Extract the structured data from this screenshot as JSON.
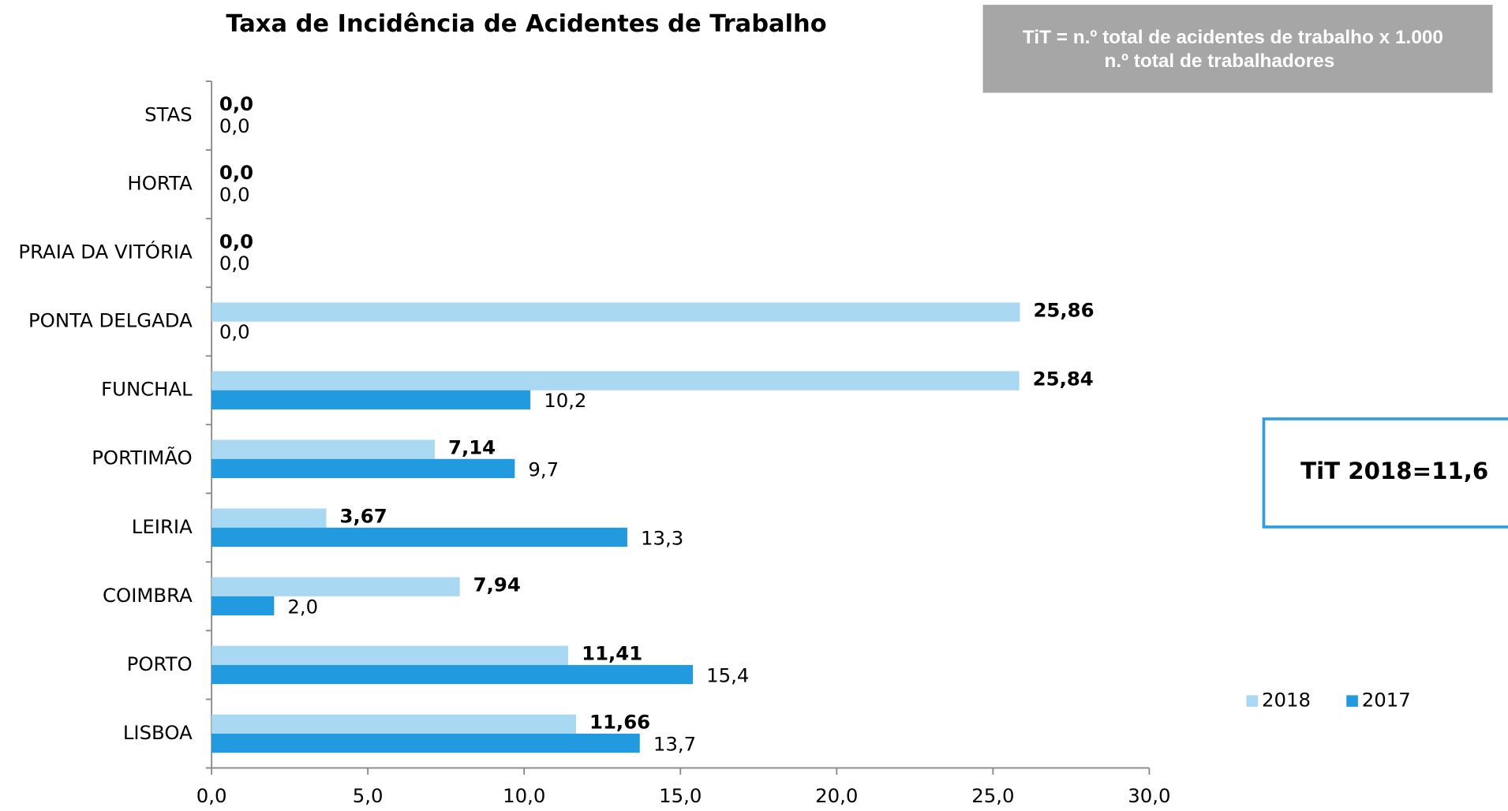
{
  "chart_data": {
    "type": "bar",
    "orientation": "horizontal",
    "title": "Taxa de Incidência de Acidentes de Trabalho",
    "formula": [
      "TiT =  n.º total de acidentes de trabalho x 1.000",
      "n.º total de trabalhadores"
    ],
    "highlight": "TiT 2018=11,6",
    "categories": [
      "STAS",
      "HORTA",
      "PRAIA DA VITÓRIA",
      "PONTA DELGADA",
      "FUNCHAL",
      "PORTIMÃO",
      "LEIRIA",
      "COIMBRA",
      "PORTO",
      "LISBOA"
    ],
    "series": [
      {
        "name": "2018",
        "color": "#a9d8f2",
        "values": [
          0,
          0,
          0,
          25.86,
          25.84,
          7.14,
          3.67,
          7.94,
          11.41,
          11.66
        ],
        "value_labels": [
          "0,0",
          "0,0",
          "0,0",
          "25,86",
          "25,84",
          "7,14",
          "3,67",
          "7,94",
          "11,41",
          "11,66"
        ]
      },
      {
        "name": "2017",
        "color": "#229ae0",
        "values": [
          0,
          0,
          0,
          0,
          10.2,
          9.7,
          13.3,
          2.0,
          15.4,
          13.7
        ],
        "value_labels": [
          "0,0",
          "0,0",
          "0,0",
          "0,0",
          "10,2",
          "9,7",
          "13,3",
          "2,0",
          "15,4",
          "13,7"
        ]
      }
    ],
    "xlim": [
      0,
      30
    ],
    "xticks": [
      {
        "value": 0,
        "label": "0,0"
      },
      {
        "value": 5,
        "label": "5,0"
      },
      {
        "value": 10,
        "label": "10,0"
      },
      {
        "value": 15,
        "label": "15,0"
      },
      {
        "value": 20,
        "label": "20,0"
      },
      {
        "value": 25,
        "label": "25,0"
      },
      {
        "value": 30,
        "label": "30,0"
      }
    ],
    "legend": "right"
  }
}
